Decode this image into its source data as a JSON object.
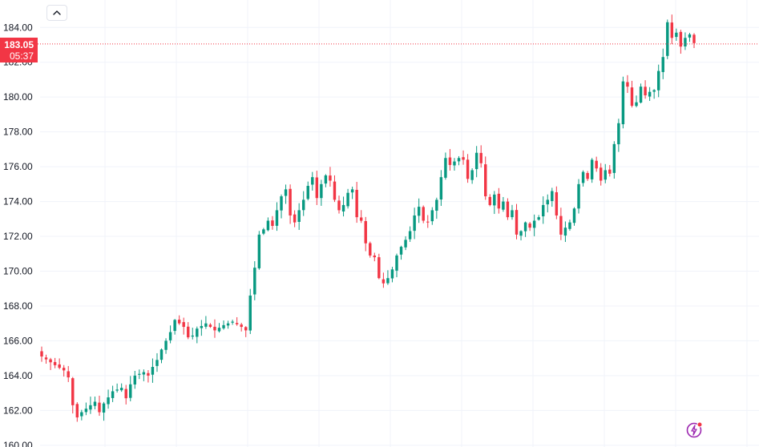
{
  "chart_data": {
    "type": "candlestick",
    "ylim": [
      159.9,
      184.9
    ],
    "y_ticks": [
      "160.00",
      "162.00",
      "164.00",
      "166.00",
      "168.00",
      "170.00",
      "172.00",
      "174.00",
      "176.00",
      "178.00",
      "180.00",
      "182.00",
      "184.00"
    ],
    "grid": true,
    "last_price": 183.05,
    "up_color": "#089981",
    "down_color": "#f23645",
    "close_path": [
      [
        0,
        165.1
      ],
      [
        3,
        164.6
      ],
      [
        5,
        164.3
      ],
      [
        6,
        163.9
      ],
      [
        7,
        162.3
      ],
      [
        8,
        161.6
      ],
      [
        9,
        161.9
      ],
      [
        10,
        162.1
      ],
      [
        12,
        162.5
      ],
      [
        13,
        161.9
      ],
      [
        14,
        162.4
      ],
      [
        16,
        163.1
      ],
      [
        18,
        163.3
      ],
      [
        19,
        162.7
      ],
      [
        20,
        163.5
      ],
      [
        21,
        164.0
      ],
      [
        23,
        164.2
      ],
      [
        24,
        164.0
      ],
      [
        25,
        164.5
      ],
      [
        26,
        164.9
      ],
      [
        27,
        165.5
      ],
      [
        29,
        166.5
      ],
      [
        30,
        167.2
      ],
      [
        32,
        166.8
      ],
      [
        33,
        166.2
      ],
      [
        34,
        166.3
      ],
      [
        35,
        166.7
      ],
      [
        37,
        167.0
      ],
      [
        39,
        166.6
      ],
      [
        41,
        166.9
      ],
      [
        43,
        167.1
      ],
      [
        45,
        166.8
      ],
      [
        46,
        166.6
      ],
      [
        47,
        168.6
      ],
      [
        48,
        170.2
      ],
      [
        49,
        172.1
      ],
      [
        50,
        172.4
      ],
      [
        51,
        172.9
      ],
      [
        52,
        172.6
      ],
      [
        53,
        173.5
      ],
      [
        54,
        174.3
      ],
      [
        55,
        174.7
      ],
      [
        56,
        173.2
      ],
      [
        57,
        172.8
      ],
      [
        58,
        173.5
      ],
      [
        59,
        174.1
      ],
      [
        60,
        174.9
      ],
      [
        61,
        175.4
      ],
      [
        62,
        174.2
      ],
      [
        63,
        175.0
      ],
      [
        64,
        175.5
      ],
      [
        65,
        175.2
      ],
      [
        66,
        174.1
      ],
      [
        67,
        173.5
      ],
      [
        68,
        173.8
      ],
      [
        69,
        174.5
      ],
      [
        70,
        174.7
      ],
      [
        71,
        173.1
      ],
      [
        72,
        172.9
      ],
      [
        73,
        171.6
      ],
      [
        74,
        170.9
      ],
      [
        75,
        170.8
      ],
      [
        76,
        169.6
      ],
      [
        77,
        169.3
      ],
      [
        78,
        169.6
      ],
      [
        79,
        170.1
      ],
      [
        80,
        170.9
      ],
      [
        81,
        171.4
      ],
      [
        82,
        171.8
      ],
      [
        83,
        172.3
      ],
      [
        84,
        173.2
      ],
      [
        85,
        173.7
      ],
      [
        86,
        172.9
      ],
      [
        87,
        172.8
      ],
      [
        88,
        173.5
      ],
      [
        89,
        174.1
      ],
      [
        90,
        175.4
      ],
      [
        91,
        176.5
      ],
      [
        92,
        176.1
      ],
      [
        93,
        176.3
      ],
      [
        94,
        176.5
      ],
      [
        95,
        176.4
      ],
      [
        96,
        175.3
      ],
      [
        97,
        175.8
      ],
      [
        98,
        176.8
      ],
      [
        99,
        176.2
      ],
      [
        100,
        174.3
      ],
      [
        101,
        173.8
      ],
      [
        102,
        174.4
      ],
      [
        103,
        173.6
      ],
      [
        104,
        174.0
      ],
      [
        105,
        173.1
      ],
      [
        106,
        173.5
      ],
      [
        107,
        172.1
      ],
      [
        108,
        172.3
      ],
      [
        109,
        172.8
      ],
      [
        110,
        172.5
      ],
      [
        111,
        172.9
      ],
      [
        112,
        173.1
      ],
      [
        113,
        173.8
      ],
      [
        114,
        174.1
      ],
      [
        115,
        174.6
      ],
      [
        116,
        173.2
      ],
      [
        117,
        172.1
      ],
      [
        118,
        172.5
      ],
      [
        119,
        172.8
      ],
      [
        120,
        173.6
      ],
      [
        121,
        175.0
      ],
      [
        122,
        175.7
      ],
      [
        123,
        175.3
      ],
      [
        124,
        176.4
      ],
      [
        125,
        175.9
      ],
      [
        126,
        175.2
      ],
      [
        127,
        175.8
      ],
      [
        128,
        175.6
      ],
      [
        129,
        177.3
      ],
      [
        130,
        178.5
      ],
      [
        131,
        180.9
      ],
      [
        132,
        180.6
      ],
      [
        133,
        179.5
      ],
      [
        134,
        179.7
      ],
      [
        135,
        180.6
      ],
      [
        136,
        180.1
      ],
      [
        137,
        180.3
      ],
      [
        138,
        180.4
      ],
      [
        139,
        181.5
      ],
      [
        140,
        182.3
      ],
      [
        141,
        184.3
      ],
      [
        142,
        183.4
      ],
      [
        143,
        183.7
      ],
      [
        144,
        182.9
      ],
      [
        145,
        183.4
      ],
      [
        146,
        183.6
      ],
      [
        147,
        183.1
      ]
    ]
  },
  "ui": {
    "collapse_button_icon": "chevron-up-icon",
    "price_label": "183.05",
    "countdown": "05:37",
    "flash_icon": "lightning-icon"
  }
}
